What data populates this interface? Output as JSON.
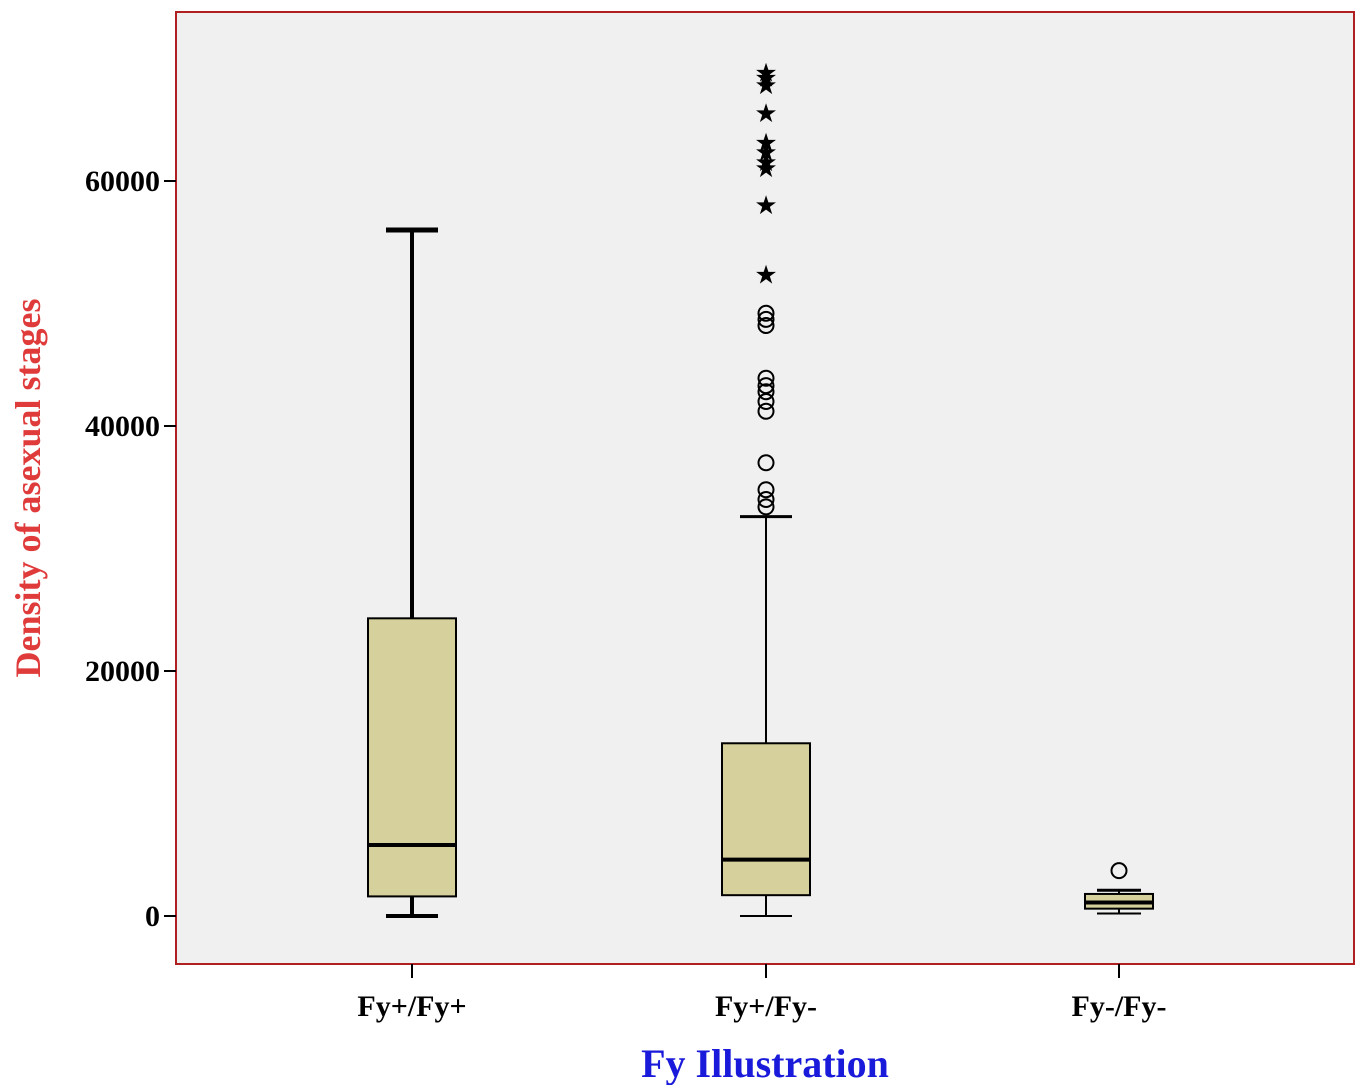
{
  "chart_data": {
    "type": "boxplot",
    "xlabel": "Fy Illustration",
    "ylabel": "Density of asexual stages",
    "ylim": [
      -4000,
      74000
    ],
    "yticks": [
      0,
      20000,
      40000,
      60000
    ],
    "ytick_labels": [
      "0",
      "20000",
      "40000",
      "60000"
    ],
    "categories": [
      "Fy+/Fy+",
      "Fy+/Fy-",
      "Fy-/Fy-"
    ],
    "boxes": [
      {
        "category": "Fy+/Fy+",
        "whisker_low": 0,
        "q1": 1600,
        "median": 5800,
        "q3": 24300,
        "whisker_high": 56000,
        "outliers": [],
        "extremes": []
      },
      {
        "category": "Fy+/Fy-",
        "whisker_low": 0,
        "q1": 1700,
        "median": 4600,
        "q3": 14100,
        "whisker_high": 32600,
        "outliers": [
          33400,
          34000,
          34800,
          37000,
          41200,
          42000,
          42800,
          43300,
          43900,
          48200,
          48700,
          49200
        ],
        "extremes": [
          52600,
          58300,
          61300,
          61800,
          62600,
          63400,
          65800,
          68100,
          68700,
          69100
        ]
      },
      {
        "category": "Fy-/Fy-",
        "whisker_low": 200,
        "q1": 600,
        "median": 1100,
        "q3": 1800,
        "whisker_high": 2100,
        "outliers": [
          3700
        ],
        "extremes": []
      }
    ],
    "colors": {
      "box_fill": "#d6d19c",
      "plot_background": "#f0f0f0",
      "frame": "#b02020",
      "xlabel": "#1a1adb",
      "ylabel": "#e03b3b"
    },
    "grid": false
  }
}
